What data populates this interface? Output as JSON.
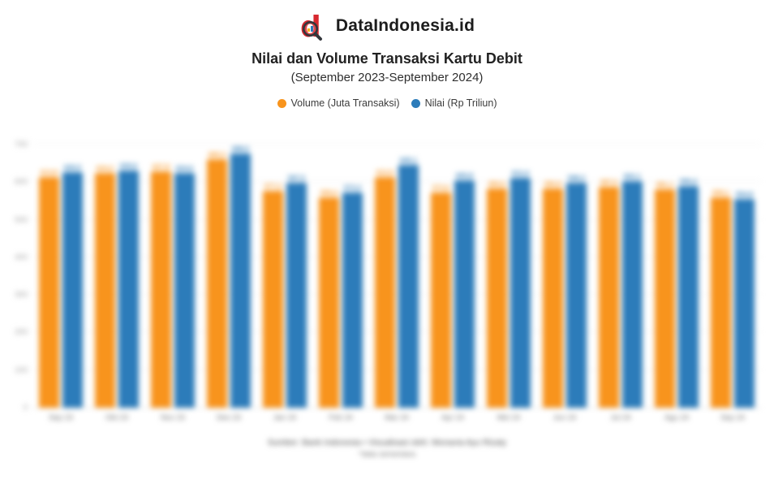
{
  "brand": {
    "name": "DataIndonesia.id",
    "logo_color": "#d7282f",
    "logo_accent": "#33363b"
  },
  "title": "Nilai dan Volume Transaksi Kartu Debit",
  "subtitle": "(September 2023-September 2024)",
  "legend": [
    {
      "label": "Volume (Juta Transaksi)",
      "color": "#f8941d"
    },
    {
      "label": "Nilai (Rp Triliun)",
      "color": "#2c7cba"
    }
  ],
  "footer": {
    "line1": "Sumber: Bank Indonesia • Visualisasi oleh: Monavia Ayu Rizaty",
    "line2": "*data sementara"
  },
  "chart_data": {
    "type": "bar",
    "categories": [
      "Sep 23",
      "Okt 23",
      "Nov 23",
      "Des 23",
      "Jan 24",
      "Feb 24",
      "Mar 24",
      "Apr 24",
      "Mei 24",
      "Jun 24",
      "Jul 24",
      "Agu 24",
      "Sep 24"
    ],
    "series": [
      {
        "name": "Volume (Juta Transaksi)",
        "color": "#f8941d",
        "values": [
          613.8,
          624.2,
          627.8,
          660.3,
          577.2,
          559.4,
          612.9,
          573.6,
          583.5,
          583.9,
          587.6,
          581.1,
          559.1
        ]
      },
      {
        "name": "Nilai (Rp Triliun)",
        "color": "#2c7cba",
        "values": [
          626.5,
          630.6,
          624.6,
          688.5,
          597.5,
          573.3,
          645.1,
          605.8,
          612.4,
          598.3,
          602.1,
          590.4,
          554.8
        ]
      }
    ],
    "title": "Nilai dan Volume Transaksi Kartu Debit (September 2023-September 2024)",
    "xlabel": "",
    "ylabel": "",
    "ylim": [
      0,
      700
    ],
    "yticks": [
      0,
      100,
      200,
      300,
      400,
      500,
      600,
      700
    ],
    "grid": true,
    "legend_position": "top",
    "value_labels": true,
    "value_label_decimal_separator": ","
  }
}
